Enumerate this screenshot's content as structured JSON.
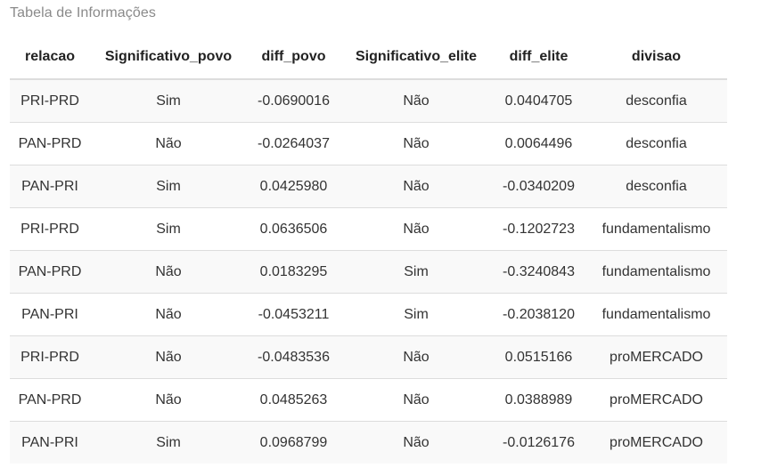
{
  "caption": "Tabela de Informações",
  "table": {
    "headers": [
      "relacao",
      "Significativo_povo",
      "diff_povo",
      "Significativo_elite",
      "diff_elite",
      "divisao"
    ],
    "rows": [
      [
        "PRI-PRD",
        "Sim",
        "-0.0690016",
        "Não",
        "0.0404705",
        "desconfia"
      ],
      [
        "PAN-PRD",
        "Não",
        "-0.0264037",
        "Não",
        "0.0064496",
        "desconfia"
      ],
      [
        "PAN-PRI",
        "Sim",
        "0.0425980",
        "Não",
        "-0.0340209",
        "desconfia"
      ],
      [
        "PRI-PRD",
        "Sim",
        "0.0636506",
        "Não",
        "-0.1202723",
        "fundamentalismo"
      ],
      [
        "PAN-PRD",
        "Não",
        "0.0183295",
        "Sim",
        "-0.3240843",
        "fundamentalismo"
      ],
      [
        "PAN-PRI",
        "Não",
        "-0.0453211",
        "Sim",
        "-0.2038120",
        "fundamentalismo"
      ],
      [
        "PRI-PRD",
        "Não",
        "-0.0483536",
        "Não",
        "0.0515166",
        "proMERCADO"
      ],
      [
        "PAN-PRD",
        "Não",
        "0.0485263",
        "Não",
        "0.0388989",
        "proMERCADO"
      ],
      [
        "PAN-PRI",
        "Sim",
        "0.0968799",
        "Não",
        "-0.0126176",
        "proMERCADO"
      ]
    ]
  }
}
